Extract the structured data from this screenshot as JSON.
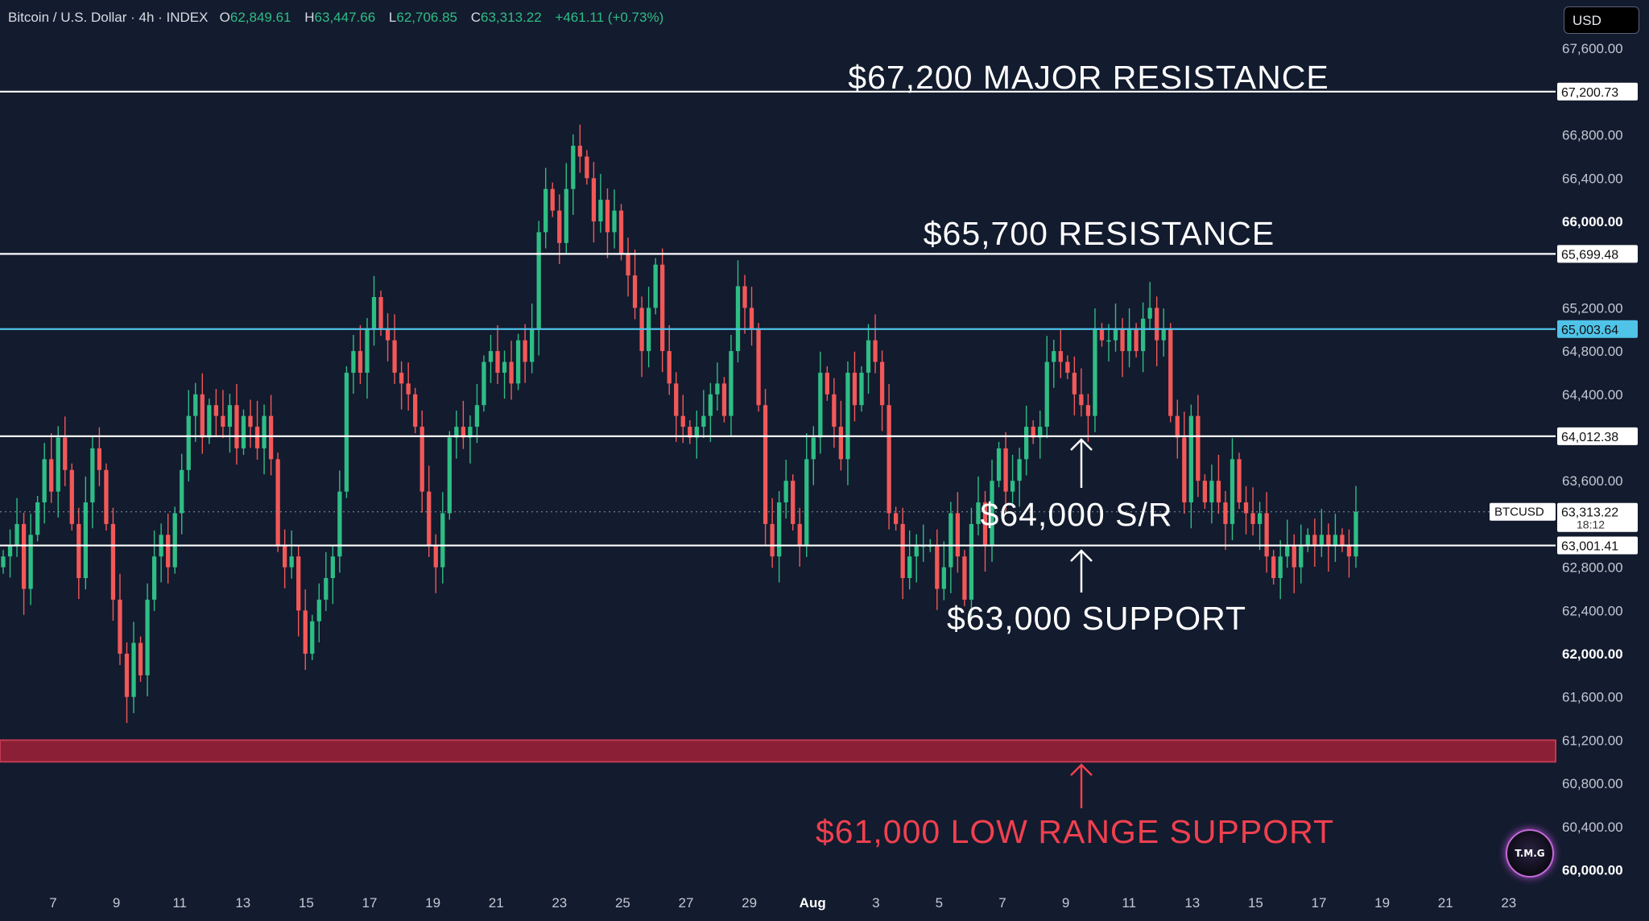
{
  "header": {
    "symbol": "Bitcoin / U.S. Dollar · 4h · INDEX",
    "open_label": "O",
    "open": "62,849.61",
    "high_label": "H",
    "high": "63,447.66",
    "low_label": "L",
    "low": "62,706.85",
    "close_label": "C",
    "close": "63,313.22",
    "change": "+461.11 (+0.73%)"
  },
  "currency_button": "USD",
  "logo_text": "T.M.G",
  "colors": {
    "background": "#131b2e",
    "up": "#2ebd85",
    "down": "#f25858",
    "level_line": "#ffffff",
    "highlight_line": "#4fc3e8",
    "support_zone": "#8a1f35",
    "support_text": "#f0404f"
  },
  "chart_data": {
    "type": "candlestick",
    "symbol": "BTCUSD",
    "timeframe": "4h",
    "ylim": [
      60000,
      67800
    ],
    "y_ticks": [
      "67,600.00",
      "66,800.00",
      "66,400.00",
      "66,000.00",
      "65,200.00",
      "64,800.00",
      "64,400.00",
      "63,600.00",
      "62,800.00",
      "62,400.00",
      "62,000.00",
      "61,600.00",
      "61,200.00",
      "60,800.00",
      "60,400.00",
      "60,000.00"
    ],
    "bold_ticks": [
      "66,000.00",
      "62,000.00",
      "60,000.00"
    ],
    "x_ticks": [
      "7",
      "9",
      "11",
      "13",
      "15",
      "17",
      "19",
      "21",
      "23",
      "25",
      "27",
      "29",
      "Aug",
      "3",
      "5",
      "7",
      "9",
      "11",
      "13",
      "15",
      "17",
      "19",
      "21",
      "23"
    ],
    "price_labels": [
      {
        "value": 67200.73,
        "label": "67,200.73"
      },
      {
        "value": 65699.48,
        "label": "65,699.48"
      },
      {
        "value": 65003.64,
        "label": "65,003.64",
        "highlight": true
      },
      {
        "value": 64012.38,
        "label": "64,012.38"
      },
      {
        "value": 63001.41,
        "label": "63,001.41"
      }
    ],
    "current": {
      "value": 63313.22,
      "label": "63,313.22",
      "countdown": "18:12",
      "tag": "BTCUSD"
    },
    "support_zone": [
      61000,
      61200
    ],
    "annotations": [
      {
        "text": "$67,200 MAJOR RESISTANCE",
        "price": 67200
      },
      {
        "text": "$65,700 RESISTANCE",
        "price": 65700
      },
      {
        "text": "$64,000 S/R",
        "price": 64000
      },
      {
        "text": "$63,000 SUPPORT",
        "price": 63000
      },
      {
        "text": "$61,000 LOW RANGE SUPPORT",
        "price": 61000
      }
    ],
    "closes": [
      62900,
      63000,
      63200,
      62600,
      63100,
      63400,
      63800,
      63500,
      64000,
      63700,
      63200,
      62700,
      63400,
      63900,
      63700,
      63200,
      62500,
      62000,
      61600,
      62100,
      61800,
      62500,
      62900,
      63100,
      62800,
      63300,
      63700,
      64200,
      64400,
      64000,
      64300,
      64200,
      64100,
      64300,
      63900,
      64200,
      64100,
      63900,
      64200,
      63800,
      63000,
      62800,
      62900,
      62400,
      62000,
      62300,
      62500,
      62700,
      62900,
      63500,
      64600,
      64800,
      64600,
      65000,
      65300,
      65000,
      64900,
      64600,
      64500,
      64400,
      64100,
      63500,
      63000,
      62800,
      63300,
      64000,
      64100,
      64000,
      64100,
      64300,
      64700,
      64800,
      64600,
      64700,
      64500,
      64900,
      64700,
      65000,
      65900,
      66300,
      66100,
      65800,
      66300,
      66700,
      66600,
      66400,
      66000,
      66200,
      65900,
      66100,
      65700,
      65500,
      65200,
      64800,
      65200,
      65600,
      64800,
      64500,
      64200,
      64100,
      64000,
      64100,
      64200,
      64400,
      64500,
      64200,
      64800,
      65400,
      65200,
      65000,
      64300,
      63200,
      62900,
      63400,
      63600,
      63200,
      63000,
      63800,
      64000,
      64600,
      64400,
      64100,
      63800,
      64600,
      64300,
      64600,
      64900,
      64700,
      64300,
      63300,
      63200,
      62700,
      62900,
      63000,
      63000,
      63000,
      62600,
      62800,
      63300,
      62900,
      62500,
      63200,
      63400,
      63000,
      63600,
      63900,
      63500,
      63600,
      63800,
      64100,
      64000,
      64100,
      64700,
      64800,
      64700,
      64600,
      64400,
      64300,
      64200,
      65000,
      64900,
      64900,
      65000,
      64800,
      65000,
      64800,
      65100,
      65200,
      64900,
      65000,
      64200,
      64000,
      63400,
      64200,
      63600,
      63400,
      63600,
      63400,
      63200,
      63800,
      63400,
      63300,
      63200,
      63300,
      62900,
      62700,
      62900,
      63000,
      62800,
      63000,
      63100,
      63000,
      63100,
      63000,
      63100,
      63000,
      62900,
      63313
    ]
  }
}
